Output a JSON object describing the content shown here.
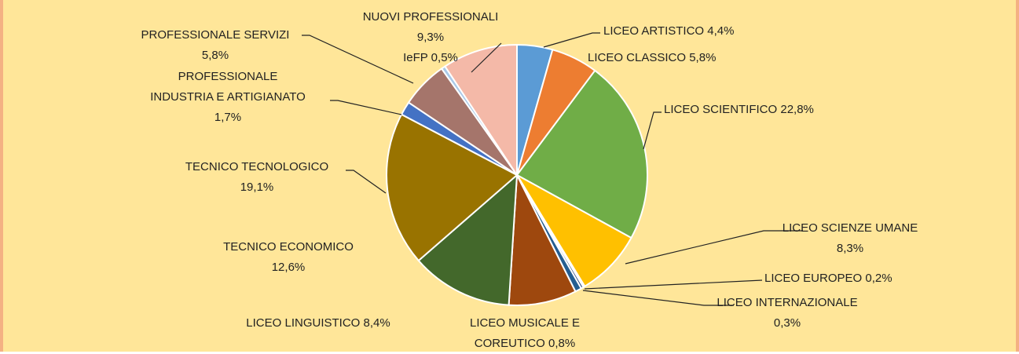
{
  "chart_data": {
    "type": "pie",
    "categories": [
      "LICEO ARTISTICO",
      "LICEO CLASSICO",
      "LICEO SCIENTIFICO",
      "LICEO SCIENZE UMANE",
      "LICEO EUROPEO",
      "LICEO INTERNAZIONALE",
      "LICEO MUSICALE E\nCOREUTICO",
      "LICEO LINGUISTICO",
      "TECNICO ECONOMICO",
      "TECNICO TECNOLOGICO",
      "PROFESSIONALE\nINDUSTRIA E ARTIGIANATO",
      "PROFESSIONALE SERVIZI",
      "IeFP",
      "NUOVI PROFESSIONALI"
    ],
    "values": [
      4.4,
      5.8,
      22.8,
      8.3,
      0.2,
      0.3,
      0.8,
      8.4,
      12.6,
      19.1,
      1.7,
      5.8,
      0.5,
      9.3
    ],
    "value_labels": [
      "4,4%",
      "5,8%",
      "22,8%",
      "8,3%",
      "0,2%",
      "0,3%",
      "0,8%",
      "8,4%",
      "12,6%",
      "19,1%",
      "1,7%",
      "5,8%",
      "0,5%",
      "9,3%"
    ],
    "colors": [
      "#5b9bd5",
      "#ed7d31",
      "#70ad47",
      "#ffc000",
      "#4472c4",
      "#264478",
      "#255e91",
      "#9e480e",
      "#43682b",
      "#997300",
      "#4472c4",
      "#a5756b",
      "#a9c9e8",
      "#f4b9a8"
    ]
  }
}
